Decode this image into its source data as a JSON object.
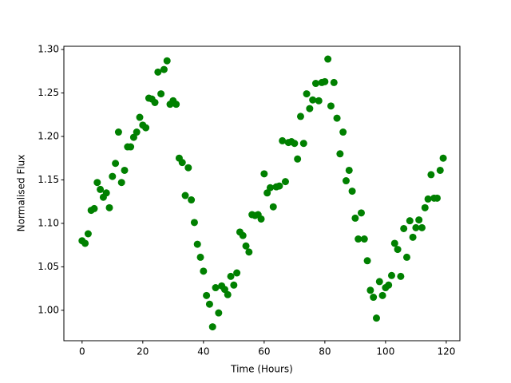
{
  "chart_data": {
    "type": "scatter",
    "x_label": "Time (Hours)",
    "y_label": "Normalised Flux",
    "color": "#008000",
    "x": [
      0,
      1,
      2,
      3,
      4,
      5,
      6,
      7,
      8,
      9,
      10,
      11,
      12,
      13,
      14,
      15,
      16,
      17,
      18,
      19,
      20,
      21,
      22,
      23,
      24,
      25,
      26,
      27,
      28,
      29,
      30,
      31,
      32,
      33,
      34,
      35,
      36,
      37,
      38,
      39,
      40,
      41,
      42,
      43,
      44,
      45,
      46,
      47,
      48,
      49,
      50,
      51,
      52,
      53,
      54,
      55,
      56,
      57,
      58,
      59,
      60,
      61,
      62,
      63,
      64,
      65,
      66,
      67,
      68,
      69,
      70,
      71,
      72,
      73,
      74,
      75,
      76,
      77,
      78,
      79,
      80,
      81,
      82,
      83,
      84,
      85,
      86,
      87,
      88,
      89,
      90,
      91,
      92,
      93,
      94,
      95,
      96,
      97,
      98,
      99,
      100,
      101,
      102,
      103,
      104,
      105,
      106,
      107,
      108,
      109,
      110,
      111,
      112,
      113,
      114,
      115,
      116,
      117,
      118,
      119
    ],
    "values": [
      1.08,
      1.077,
      1.088,
      1.115,
      1.117,
      1.147,
      1.139,
      1.13,
      1.135,
      1.118,
      1.154,
      1.169,
      1.205,
      1.147,
      1.161,
      1.188,
      1.188,
      1.199,
      1.205,
      1.222,
      1.213,
      1.21,
      1.244,
      1.243,
      1.239,
      1.274,
      1.249,
      1.277,
      1.287,
      1.237,
      1.241,
      1.237,
      1.175,
      1.17,
      1.132,
      1.164,
      1.127,
      1.101,
      1.076,
      1.061,
      1.045,
      1.017,
      1.007,
      0.981,
      1.026,
      0.997,
      1.028,
      1.024,
      1.018,
      1.039,
      1.029,
      1.043,
      1.09,
      1.086,
      1.074,
      1.067,
      1.11,
      1.109,
      1.11,
      1.105,
      1.157,
      1.135,
      1.141,
      1.119,
      1.142,
      1.143,
      1.195,
      1.148,
      1.193,
      1.194,
      1.192,
      1.174,
      1.223,
      1.192,
      1.249,
      1.232,
      1.242,
      1.261,
      1.241,
      1.262,
      1.263,
      1.289,
      1.235,
      1.262,
      1.221,
      1.18,
      1.205,
      1.149,
      1.161,
      1.137,
      1.106,
      1.082,
      1.112,
      1.082,
      1.057,
      1.023,
      1.015,
      0.991,
      1.033,
      1.017,
      1.026,
      1.029,
      1.04,
      1.077,
      1.07,
      1.039,
      1.094,
      1.061,
      1.103,
      1.084,
      1.095,
      1.104,
      1.095,
      1.118,
      1.128,
      1.156,
      1.129,
      1.129,
      1.161,
      1.175
    ],
    "xlim": [
      -6,
      124.5
    ],
    "ylim": [
      0.965,
      1.3037
    ],
    "xticks": [
      0,
      20,
      40,
      60,
      80,
      100,
      120
    ],
    "yticks": [
      {
        "value": 1,
        "label": "1.00"
      },
      {
        "value": 1.05,
        "label": "1.05"
      },
      {
        "value": 1.1,
        "label": "1.10"
      },
      {
        "value": 1.15,
        "label": "1.15"
      },
      {
        "value": 1.2,
        "label": "1.20"
      },
      {
        "value": 1.25,
        "label": "1.25"
      },
      {
        "value": 1.3,
        "label": "1.30"
      }
    ]
  }
}
